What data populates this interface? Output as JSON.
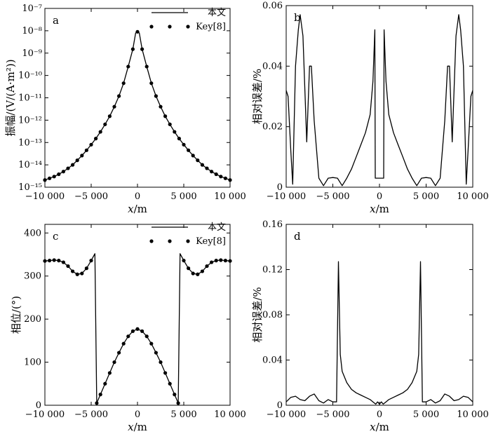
{
  "chart_data": [
    {
      "panel": "a",
      "type": "line",
      "ylabel": "振幅/(V/(A·m²))",
      "xlabel": "x/m",
      "xlim": [
        -10000,
        10000
      ],
      "ylim": [
        1e-15,
        1e-07
      ],
      "yscale": "log",
      "xticks": [
        -10000,
        -5000,
        0,
        5000,
        10000
      ],
      "xtick_labels": [
        "−10 000",
        "−5 000",
        "0",
        "5 000",
        "10 000"
      ],
      "ytick_labels": [
        "10⁻¹⁵",
        "10⁻¹⁴",
        "10⁻¹³",
        "10⁻¹²",
        "10⁻¹¹",
        "10⁻¹⁰",
        "10⁻⁹",
        "10⁻⁸",
        "10⁻⁷"
      ],
      "legend": [
        {
          "label": "本文",
          "style": "line"
        },
        {
          "label": "Key[8]",
          "style": "dots"
        }
      ],
      "legend_position": "top-right",
      "curve": {
        "x": [
          -10000,
          -9500,
          -9000,
          -8500,
          -8000,
          -7500,
          -7000,
          -6500,
          -6000,
          -5500,
          -5000,
          -4500,
          -4000,
          -3500,
          -3000,
          -2500,
          -2000,
          -1500,
          -1000,
          -500,
          -200,
          0,
          200,
          500,
          1000,
          1500,
          2000,
          2500,
          3000,
          3500,
          4000,
          4500,
          5000,
          5500,
          6000,
          6500,
          7000,
          7500,
          8000,
          8500,
          9000,
          9500,
          10000
        ],
        "y": [
          2.1e-15,
          2.5e-15,
          3e-15,
          3.8e-15,
          5e-15,
          7e-15,
          1e-14,
          1.6e-14,
          2.6e-14,
          4.5e-14,
          8e-14,
          1.5e-13,
          3e-13,
          6.5e-13,
          1.5e-12,
          4e-12,
          1.2e-11,
          4.5e-11,
          2.5e-10,
          1.5e-09,
          8e-09,
          9e-09,
          8e-09,
          1.5e-09,
          2.5e-10,
          4.5e-11,
          1.2e-11,
          4e-12,
          1.5e-12,
          6.5e-13,
          3e-13,
          1.5e-13,
          8e-14,
          4.5e-14,
          2.6e-14,
          1.6e-14,
          1e-14,
          7e-15,
          5e-15,
          3.8e-15,
          3e-15,
          2.5e-15,
          2.1e-15
        ]
      }
    },
    {
      "panel": "b",
      "type": "line",
      "ylabel": "相对误差/%",
      "xlabel": "x/m",
      "xlim": [
        -10000,
        10000
      ],
      "ylim": [
        0,
        0.06
      ],
      "xticks": [
        -10000,
        -5000,
        0,
        5000,
        10000
      ],
      "xtick_labels": [
        "−10 000",
        "−5 000",
        "0",
        "5 000",
        "10 000"
      ],
      "yticks": [
        0,
        0.02,
        0.04,
        0.06
      ],
      "ytick_labels": [
        "0",
        "0.02",
        "0.04",
        "0.06"
      ],
      "curve": {
        "x": [
          -10000,
          -9800,
          -9500,
          -9300,
          -9000,
          -8700,
          -8500,
          -8200,
          -7800,
          -7500,
          -7300,
          -7000,
          -6500,
          -6000,
          -5500,
          -5000,
          -4500,
          -4000,
          -3500,
          -3000,
          -2500,
          -2000,
          -1500,
          -1000,
          -700,
          -500,
          -450,
          -400,
          0,
          400,
          450,
          500,
          700,
          1000,
          1500,
          2000,
          2500,
          3000,
          3500,
          4000,
          4500,
          5000,
          5500,
          6000,
          6500,
          7000,
          7300,
          7500,
          7800,
          8200,
          8500,
          8700,
          9000,
          9300,
          9500,
          9800,
          10000
        ],
        "y": [
          0.032,
          0.03,
          0.012,
          0.001,
          0.04,
          0.052,
          0.057,
          0.05,
          0.015,
          0.04,
          0.04,
          0.022,
          0.003,
          0.0005,
          0.003,
          0.0032,
          0.003,
          0.0005,
          0.003,
          0.006,
          0.01,
          0.014,
          0.018,
          0.024,
          0.035,
          0.052,
          0.003,
          0.003,
          0.003,
          0.003,
          0.003,
          0.052,
          0.035,
          0.024,
          0.018,
          0.014,
          0.01,
          0.006,
          0.003,
          0.0005,
          0.003,
          0.0032,
          0.003,
          0.0005,
          0.003,
          0.022,
          0.04,
          0.04,
          0.015,
          0.05,
          0.057,
          0.052,
          0.04,
          0.001,
          0.012,
          0.03,
          0.032
        ]
      }
    },
    {
      "panel": "c",
      "type": "line",
      "ylabel": "相位/(°)",
      "xlabel": "x/m",
      "xlim": [
        -10000,
        10000
      ],
      "ylim": [
        0,
        420
      ],
      "xticks": [
        -10000,
        -5000,
        0,
        5000,
        10000
      ],
      "xtick_labels": [
        "−10 000",
        "−5 000",
        "0",
        "5 000",
        "10 000"
      ],
      "yticks": [
        0,
        100,
        200,
        300,
        400
      ],
      "ytick_labels": [
        "0",
        "100",
        "200",
        "300",
        "400"
      ],
      "legend": [
        {
          "label": "本文",
          "style": "line"
        },
        {
          "label": "Key[8]",
          "style": "dots"
        }
      ],
      "legend_position": "top-right",
      "curve": {
        "x": [
          -10000,
          -9500,
          -9000,
          -8500,
          -8000,
          -7500,
          -7000,
          -6500,
          -6000,
          -5500,
          -5000,
          -4600,
          -4400,
          -4000,
          -3500,
          -3000,
          -2500,
          -2000,
          -1500,
          -1000,
          -500,
          0,
          500,
          1000,
          1500,
          2000,
          2500,
          3000,
          3500,
          4000,
          4400,
          4600,
          5000,
          5500,
          6000,
          6500,
          7000,
          7500,
          8000,
          8500,
          9000,
          9500,
          10000
        ],
        "y": [
          335,
          336,
          337,
          336,
          332,
          323,
          311,
          304,
          306,
          318,
          336,
          352,
          5,
          25,
          50,
          75,
          100,
          122,
          143,
          160,
          172,
          177,
          172,
          160,
          143,
          122,
          100,
          75,
          50,
          25,
          5,
          352,
          336,
          318,
          306,
          304,
          311,
          323,
          332,
          336,
          337,
          336,
          335
        ]
      }
    },
    {
      "panel": "d",
      "type": "line",
      "ylabel": "相对误差/%",
      "xlabel": "x/m",
      "xlim": [
        -10000,
        10000
      ],
      "ylim": [
        0,
        0.16
      ],
      "xticks": [
        -10000,
        -5000,
        0,
        5000,
        10000
      ],
      "xtick_labels": [
        "−10 000",
        "−5 000",
        "0",
        "5 000",
        "10 000"
      ],
      "yticks": [
        0,
        0.04,
        0.08,
        0.12,
        0.16
      ],
      "ytick_labels": [
        "0",
        "0.04",
        "0.08",
        "0.12",
        "0.16"
      ],
      "curve": {
        "x": [
          -10000,
          -9500,
          -9000,
          -8500,
          -8000,
          -7500,
          -7000,
          -6500,
          -6000,
          -5500,
          -5000,
          -4600,
          -4400,
          -4200,
          -4000,
          -3500,
          -3000,
          -2500,
          -2000,
          -1500,
          -1000,
          -700,
          -400,
          -200,
          0,
          200,
          400,
          700,
          1000,
          1500,
          2000,
          2500,
          3000,
          3500,
          4000,
          4200,
          4400,
          4600,
          5000,
          5500,
          6000,
          6500,
          7000,
          7500,
          8000,
          8500,
          9000,
          9500,
          10000
        ],
        "y": [
          0.003,
          0.007,
          0.008,
          0.005,
          0.004,
          0.008,
          0.01,
          0.004,
          0.002,
          0.005,
          0.003,
          0.003,
          0.127,
          0.045,
          0.03,
          0.02,
          0.014,
          0.011,
          0.009,
          0.007,
          0.005,
          0.003,
          0.001,
          0.003,
          0.001,
          0.003,
          0.001,
          0.003,
          0.005,
          0.007,
          0.009,
          0.011,
          0.014,
          0.02,
          0.03,
          0.045,
          0.127,
          0.003,
          0.003,
          0.005,
          0.002,
          0.004,
          0.01,
          0.008,
          0.004,
          0.005,
          0.008,
          0.007,
          0.003
        ]
      }
    }
  ]
}
